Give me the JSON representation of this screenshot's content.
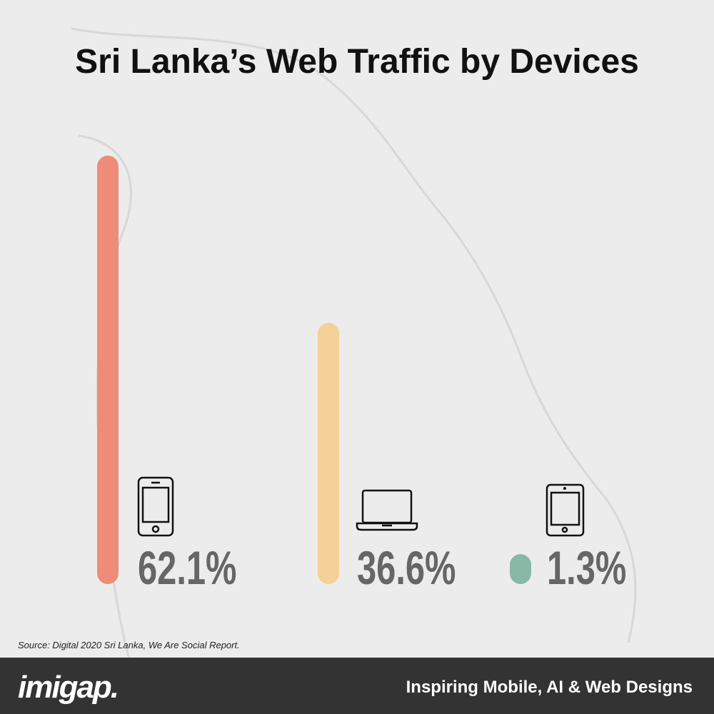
{
  "chart_data": {
    "type": "bar",
    "title": "Sri Lanka’s Web Traffic by Devices",
    "values": [
      62.1,
      36.6,
      1.3
    ],
    "value_labels": [
      "62.1%",
      "36.6%",
      "1.3%"
    ],
    "colors": [
      "#ef8b79",
      "#f4d197",
      "#8ab8a6"
    ]
  },
  "source": "Source: Digital 2020 Sri Lanka, We Are Social Report.",
  "footer": {
    "brand": "imigap.",
    "tagline": "Inspiring Mobile, AI & Web Designs"
  }
}
